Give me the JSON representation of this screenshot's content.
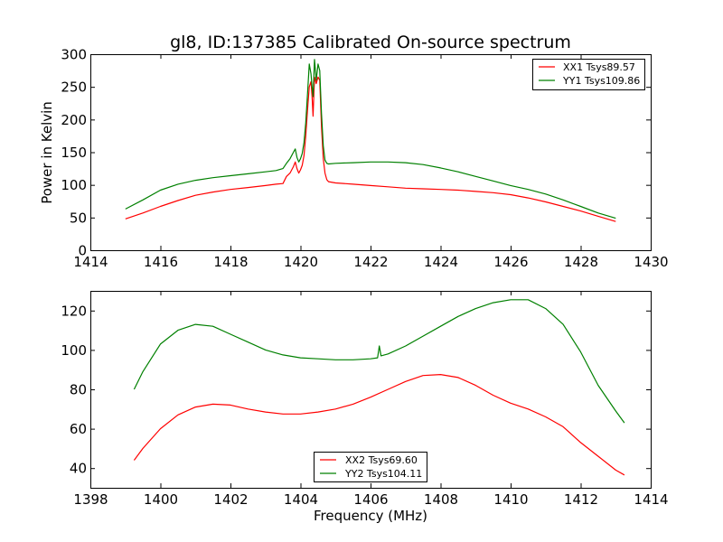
{
  "chart_data": [
    {
      "type": "line",
      "title": "gl8, ID:137385 Calibrated On-source spectrum",
      "xlabel": "",
      "ylabel": "Power in Kelvin",
      "xlim": [
        1414,
        1430
      ],
      "ylim": [
        0,
        300
      ],
      "xticks": [
        "1414",
        "1416",
        "1418",
        "1420",
        "1422",
        "1424",
        "1426",
        "1428",
        "1430"
      ],
      "yticks": [
        "0",
        "50",
        "100",
        "150",
        "200",
        "250",
        "300"
      ],
      "grid": false,
      "legend_position": "top-right",
      "series": [
        {
          "name": "XX1 Tsys89.57",
          "color": "#ff0000",
          "x": [
            1415.0,
            1415.5,
            1416.0,
            1416.5,
            1417.0,
            1417.5,
            1418.0,
            1418.5,
            1419.0,
            1419.3,
            1419.5,
            1419.6,
            1419.7,
            1419.8,
            1419.85,
            1419.9,
            1419.95,
            1420.0,
            1420.05,
            1420.1,
            1420.15,
            1420.2,
            1420.25,
            1420.3,
            1420.33,
            1420.36,
            1420.4,
            1420.45,
            1420.5,
            1420.55,
            1420.6,
            1420.65,
            1420.7,
            1420.75,
            1420.8,
            1421.0,
            1421.5,
            1422.0,
            1422.5,
            1423.0,
            1423.5,
            1424.0,
            1424.5,
            1425.0,
            1425.5,
            1426.0,
            1426.5,
            1427.0,
            1427.5,
            1428.0,
            1428.5,
            1429.0
          ],
          "y": [
            48,
            57,
            67,
            76,
            84,
            89,
            93,
            96,
            99,
            101,
            102,
            113,
            118,
            128,
            135,
            125,
            118,
            123,
            130,
            145,
            175,
            215,
            250,
            258,
            235,
            205,
            265,
            255,
            265,
            260,
            190,
            140,
            118,
            108,
            105,
            103,
            101,
            99,
            97,
            95,
            94,
            93,
            92,
            90,
            88,
            85,
            80,
            74,
            67,
            60,
            52,
            44
          ]
        },
        {
          "name": "YY1 Tsys109.86",
          "color": "#008000",
          "x": [
            1415.0,
            1415.5,
            1416.0,
            1416.5,
            1417.0,
            1417.5,
            1418.0,
            1418.5,
            1419.0,
            1419.3,
            1419.5,
            1419.6,
            1419.7,
            1419.8,
            1419.85,
            1419.9,
            1419.95,
            1420.0,
            1420.05,
            1420.1,
            1420.15,
            1420.2,
            1420.25,
            1420.3,
            1420.33,
            1420.36,
            1420.4,
            1420.45,
            1420.5,
            1420.55,
            1420.6,
            1420.65,
            1420.7,
            1420.75,
            1420.8,
            1421.0,
            1421.5,
            1422.0,
            1422.5,
            1423.0,
            1423.5,
            1424.0,
            1424.5,
            1425.0,
            1425.5,
            1426.0,
            1426.5,
            1427.0,
            1427.5,
            1428.0,
            1428.5,
            1429.0
          ],
          "y": [
            63,
            77,
            92,
            101,
            107,
            111,
            114,
            117,
            120,
            122,
            125,
            133,
            140,
            150,
            155,
            142,
            135,
            140,
            148,
            165,
            195,
            240,
            285,
            270,
            250,
            235,
            292,
            260,
            285,
            275,
            210,
            160,
            138,
            133,
            132,
            133,
            134,
            135,
            135,
            134,
            131,
            126,
            120,
            113,
            106,
            99,
            93,
            86,
            77,
            67,
            57,
            49
          ]
        }
      ]
    },
    {
      "type": "line",
      "title": "",
      "xlabel": "Frequency (MHz)",
      "ylabel": "",
      "xlim": [
        1398,
        1414
      ],
      "ylim": [
        30,
        130
      ],
      "xticks": [
        "1398",
        "1400",
        "1402",
        "1404",
        "1406",
        "1408",
        "1410",
        "1412",
        "1414"
      ],
      "yticks": [
        "40",
        "60",
        "80",
        "100",
        "120"
      ],
      "grid": false,
      "legend_position": "bottom-center",
      "series": [
        {
          "name": "XX2 Tsys69.60",
          "color": "#ff0000",
          "x": [
            1399.25,
            1399.5,
            1400.0,
            1400.5,
            1401.0,
            1401.5,
            1402.0,
            1402.5,
            1403.0,
            1403.5,
            1404.0,
            1404.5,
            1405.0,
            1405.5,
            1406.0,
            1406.5,
            1407.0,
            1407.5,
            1408.0,
            1408.5,
            1409.0,
            1409.5,
            1410.0,
            1410.5,
            1411.0,
            1411.5,
            1412.0,
            1412.5,
            1413.0,
            1413.25
          ],
          "y": [
            44,
            50,
            60,
            67,
            71,
            72.5,
            72,
            70,
            68.5,
            67.5,
            67.5,
            68.5,
            70,
            72.5,
            76,
            80,
            84,
            87,
            87.5,
            86,
            82,
            77,
            73,
            70,
            66,
            61,
            53,
            46,
            39,
            36.5
          ]
        },
        {
          "name": "YY2 Tsys104.11",
          "color": "#008000",
          "x": [
            1399.25,
            1399.5,
            1400.0,
            1400.5,
            1401.0,
            1401.5,
            1402.0,
            1402.5,
            1403.0,
            1403.5,
            1404.0,
            1404.5,
            1405.0,
            1405.5,
            1406.0,
            1406.2,
            1406.25,
            1406.3,
            1406.5,
            1407.0,
            1407.5,
            1408.0,
            1408.5,
            1409.0,
            1409.5,
            1410.0,
            1410.5,
            1411.0,
            1411.5,
            1412.0,
            1412.5,
            1413.0,
            1413.25
          ],
          "y": [
            80,
            89,
            103,
            110,
            113,
            112,
            108,
            104,
            100,
            97.5,
            96,
            95.5,
            95,
            95,
            95.5,
            96,
            102,
            97,
            98,
            102,
            107,
            112,
            117,
            121,
            124,
            125.5,
            125.5,
            121,
            113,
            99,
            82,
            69,
            63
          ]
        }
      ]
    }
  ]
}
